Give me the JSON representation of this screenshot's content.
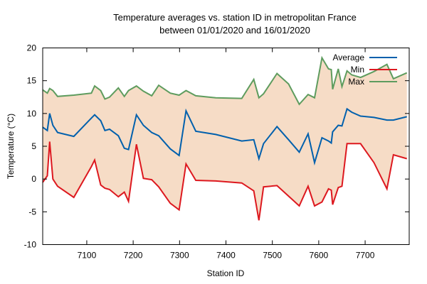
{
  "chart_data": {
    "type": "line",
    "title_line1": "Temperature averages vs. station ID in metropolitan France",
    "title_line2": "between 01/01/2020 and 16/01/2020",
    "xlabel": "Station ID",
    "ylabel": "Temperature (°C)",
    "xlim": [
      7005,
      7795
    ],
    "ylim": [
      -10,
      20
    ],
    "x_ticks": [
      7100,
      7200,
      7300,
      7400,
      7500,
      7600,
      7700
    ],
    "y_ticks": [
      -10,
      -5,
      0,
      5,
      10,
      15,
      20
    ],
    "grid": false,
    "legend_position": "top-right",
    "band": {
      "between": [
        "Min",
        "Max"
      ],
      "fill": "#f6dcc6"
    },
    "x": [
      7005,
      7015,
      7020,
      7027,
      7037,
      7072,
      7110,
      7117,
      7130,
      7139,
      7149,
      7168,
      7181,
      7190,
      7207,
      7222,
      7240,
      7255,
      7280,
      7299,
      7314,
      7335,
      7378,
      7434,
      7460,
      7471,
      7481,
      7510,
      7535,
      7558,
      7577,
      7591,
      7607,
      7621,
      7627,
      7630,
      7642,
      7650,
      7661,
      7671,
      7690,
      7719,
      7747,
      7761,
      7790
    ],
    "series": [
      {
        "name": "Average",
        "color": "#0060ad",
        "values": [
          7.9,
          7.4,
          10.0,
          8.2,
          7.1,
          6.5,
          9.3,
          9.8,
          8.9,
          7.4,
          7.6,
          6.6,
          4.7,
          4.5,
          9.8,
          8.2,
          7.1,
          6.6,
          4.6,
          3.6,
          10.4,
          7.3,
          6.8,
          5.8,
          6.0,
          3.1,
          5.4,
          8.0,
          6.0,
          4.1,
          6.9,
          2.5,
          6.3,
          5.8,
          5.5,
          7.2,
          8.2,
          8.1,
          10.7,
          10.2,
          9.6,
          9.4,
          9.0,
          9.0,
          9.5
        ]
      },
      {
        "name": "Min",
        "color": "#dd181f",
        "values": [
          -0.5,
          0.5,
          5.7,
          0.0,
          -1.1,
          -2.8,
          1.9,
          2.9,
          -0.9,
          -1.4,
          -1.6,
          -2.7,
          -2.0,
          -3.4,
          5.3,
          0.1,
          -0.1,
          -1.2,
          -3.7,
          -4.7,
          2.3,
          -0.2,
          -0.3,
          -0.6,
          -1.8,
          -6.3,
          -1.2,
          -1.0,
          -2.6,
          -4.1,
          -1.1,
          -4.1,
          -3.5,
          -1.5,
          -1.7,
          -3.9,
          -1.3,
          -1.1,
          5.4,
          5.4,
          5.4,
          2.5,
          -1.5,
          3.7,
          3.1
        ]
      },
      {
        "name": "Max",
        "color": "#5e9c5e",
        "values": [
          13.6,
          13.1,
          13.8,
          13.5,
          12.6,
          12.8,
          13.1,
          14.2,
          13.5,
          12.2,
          12.5,
          13.9,
          12.6,
          13.5,
          14.2,
          13.4,
          12.7,
          14.3,
          13.1,
          12.8,
          13.5,
          12.7,
          12.4,
          12.3,
          15.2,
          12.4,
          13.0,
          16.1,
          14.5,
          11.4,
          12.9,
          12.4,
          18.5,
          16.8,
          16.7,
          13.7,
          16.8,
          14.1,
          16.5,
          15.9,
          15.5,
          16.4,
          17.5,
          15.3,
          16.2
        ]
      }
    ]
  }
}
